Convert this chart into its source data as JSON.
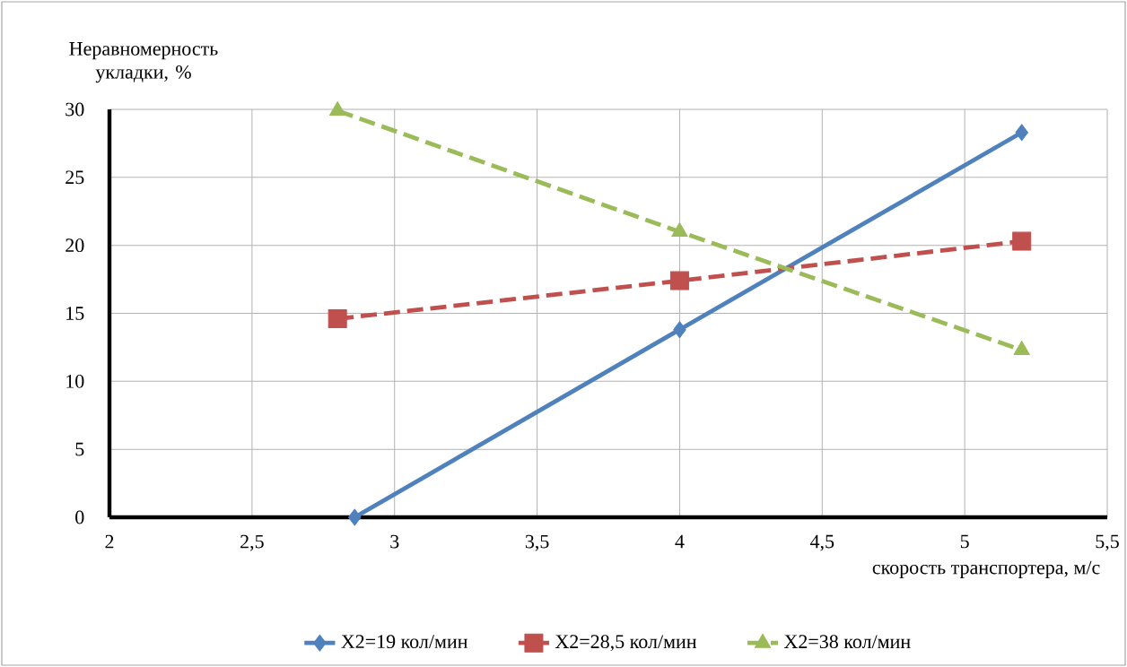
{
  "chart_data": {
    "type": "line",
    "xlabel": "скорость транспортера, м/с",
    "ylabel": "Неравномерность укладки, %",
    "xlim": [
      2,
      5.5
    ],
    "xticks": [
      2,
      {
        "value": 2.5,
        "label": "2,5"
      },
      3,
      {
        "value": 3.5,
        "label": "3,5"
      },
      4,
      {
        "value": 4.5,
        "label": "4,5"
      },
      5,
      {
        "value": 5.5,
        "label": "5,5"
      }
    ],
    "ylim": [
      0,
      30
    ],
    "yticks": [
      0,
      5,
      10,
      15,
      20,
      25,
      30
    ],
    "grid": true,
    "legend": "bottom",
    "series": [
      {
        "name": "X2=19 кол/мин",
        "color": "#4f81bd",
        "x": [
          2.86,
          4,
          5.2
        ],
        "values": [
          0,
          13.8,
          28.3
        ],
        "marker": "diamond",
        "line_style": "solid"
      },
      {
        "name": "X2=28,5 кол/мин",
        "color": "#c0504d",
        "x": [
          2.8,
          4,
          5.2
        ],
        "values": [
          14.6,
          17.4,
          20.3
        ],
        "marker": "square",
        "line_style": "dashed"
      },
      {
        "name": "X2=38 кол/мин",
        "color": "#9bbb59",
        "x": [
          2.8,
          4,
          5.2
        ],
        "values": [
          29.9,
          21,
          12.3
        ],
        "marker": "triangle",
        "line_style": "dashed"
      }
    ]
  }
}
